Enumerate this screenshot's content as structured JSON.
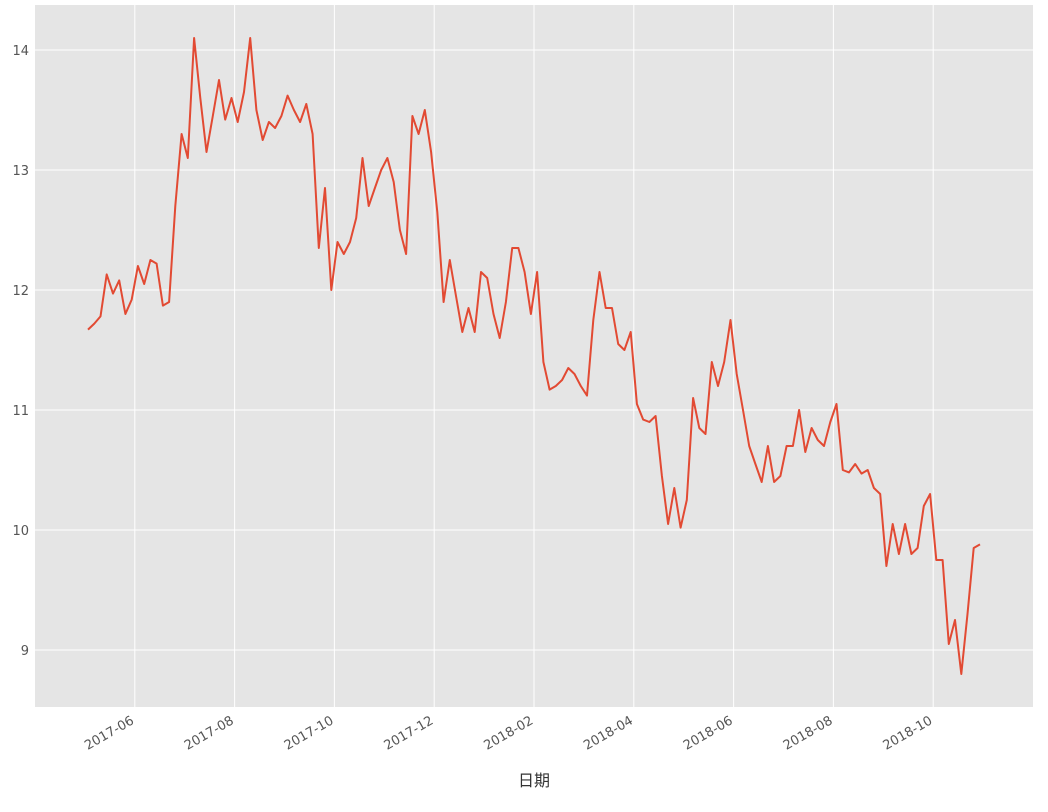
{
  "chart_data": {
    "type": "line",
    "x_label": "日期",
    "x": [
      "2017-05",
      "2017-05",
      "2017-05",
      "2017-05",
      "2017-05",
      "2017-05",
      "2017-05",
      "2017-05",
      "2017-06",
      "2017-06",
      "2017-06",
      "2017-06",
      "2017-06",
      "2017-06",
      "2017-06",
      "2017-06",
      "2017-07",
      "2017-07",
      "2017-07",
      "2017-07",
      "2017-07",
      "2017-07",
      "2017-07",
      "2017-07",
      "2017-08",
      "2017-08",
      "2017-08",
      "2017-08",
      "2017-08",
      "2017-08",
      "2017-08",
      "2017-08",
      "2017-09",
      "2017-09",
      "2017-09",
      "2017-09",
      "2017-09",
      "2017-09",
      "2017-09",
      "2017-09",
      "2017-10",
      "2017-10",
      "2017-10",
      "2017-10",
      "2017-10",
      "2017-10",
      "2017-10",
      "2017-10",
      "2017-11",
      "2017-11",
      "2017-11",
      "2017-11",
      "2017-11",
      "2017-11",
      "2017-11",
      "2017-11",
      "2017-12",
      "2017-12",
      "2017-12",
      "2017-12",
      "2017-12",
      "2017-12",
      "2017-12",
      "2017-12",
      "2018-01",
      "2018-01",
      "2018-01",
      "2018-01",
      "2018-01",
      "2018-01",
      "2018-01",
      "2018-01",
      "2018-02",
      "2018-02",
      "2018-02",
      "2018-02",
      "2018-02",
      "2018-02",
      "2018-02",
      "2018-02",
      "2018-03",
      "2018-03",
      "2018-03",
      "2018-03",
      "2018-03",
      "2018-03",
      "2018-03",
      "2018-03",
      "2018-04",
      "2018-04",
      "2018-04",
      "2018-04",
      "2018-04",
      "2018-04",
      "2018-04",
      "2018-04",
      "2018-05",
      "2018-05",
      "2018-05",
      "2018-05",
      "2018-05",
      "2018-05",
      "2018-05",
      "2018-05",
      "2018-06",
      "2018-06",
      "2018-06",
      "2018-06",
      "2018-06",
      "2018-06",
      "2018-06",
      "2018-06",
      "2018-07",
      "2018-07",
      "2018-07",
      "2018-07",
      "2018-07",
      "2018-07",
      "2018-07",
      "2018-07",
      "2018-08",
      "2018-08",
      "2018-08",
      "2018-08",
      "2018-08",
      "2018-08",
      "2018-08",
      "2018-08",
      "2018-09",
      "2018-09",
      "2018-09",
      "2018-09",
      "2018-09",
      "2018-09",
      "2018-09",
      "2018-09",
      "2018-10",
      "2018-10",
      "2018-10",
      "2018-10",
      "2018-10",
      "2018-10",
      "2018-10",
      "2018-10"
    ],
    "values": [
      11.67,
      11.72,
      11.78,
      12.13,
      11.97,
      12.08,
      11.8,
      11.92,
      12.2,
      12.05,
      12.25,
      12.22,
      11.87,
      11.9,
      12.7,
      13.3,
      13.1,
      14.1,
      13.6,
      13.15,
      13.45,
      13.75,
      13.42,
      13.6,
      13.4,
      13.65,
      14.1,
      13.5,
      13.25,
      13.4,
      13.35,
      13.45,
      13.62,
      13.5,
      13.4,
      13.55,
      13.3,
      12.35,
      12.85,
      12.0,
      12.4,
      12.3,
      12.4,
      12.6,
      13.1,
      12.7,
      12.85,
      13.0,
      13.1,
      12.9,
      12.5,
      12.3,
      13.45,
      13.3,
      13.5,
      13.15,
      12.65,
      11.9,
      12.25,
      11.95,
      11.65,
      11.85,
      11.65,
      12.15,
      12.1,
      11.8,
      11.6,
      11.9,
      12.35,
      12.35,
      12.15,
      11.8,
      12.15,
      11.4,
      11.17,
      11.2,
      11.25,
      11.35,
      11.3,
      11.2,
      11.12,
      11.75,
      12.15,
      11.85,
      11.85,
      11.55,
      11.5,
      11.65,
      11.05,
      10.92,
      10.9,
      10.95,
      10.45,
      10.05,
      10.35,
      10.02,
      10.25,
      11.1,
      10.85,
      10.8,
      11.4,
      11.2,
      11.4,
      11.75,
      11.3,
      11.0,
      10.7,
      10.55,
      10.4,
      10.7,
      10.4,
      10.45,
      10.7,
      10.7,
      11.0,
      10.65,
      10.85,
      10.75,
      10.7,
      10.9,
      11.05,
      10.5,
      10.48,
      10.55,
      10.47,
      10.5,
      10.35,
      10.3,
      9.7,
      10.05,
      9.8,
      10.05,
      9.8,
      9.85,
      10.2,
      10.3,
      9.75,
      9.75,
      9.05,
      9.25,
      8.8,
      9.3,
      9.85,
      9.88
    ],
    "color": "#e24a33",
    "xlim": [
      "2017-04",
      "2018-12"
    ],
    "xticks": [
      "2017-06",
      "2017-08",
      "2017-10",
      "2017-12",
      "2018-02",
      "2018-04",
      "2018-06",
      "2018-08",
      "2018-10"
    ],
    "ylim": [
      8.525,
      14.375
    ],
    "yticks": [
      9,
      10,
      11,
      12,
      13,
      14
    ],
    "grid": true
  }
}
